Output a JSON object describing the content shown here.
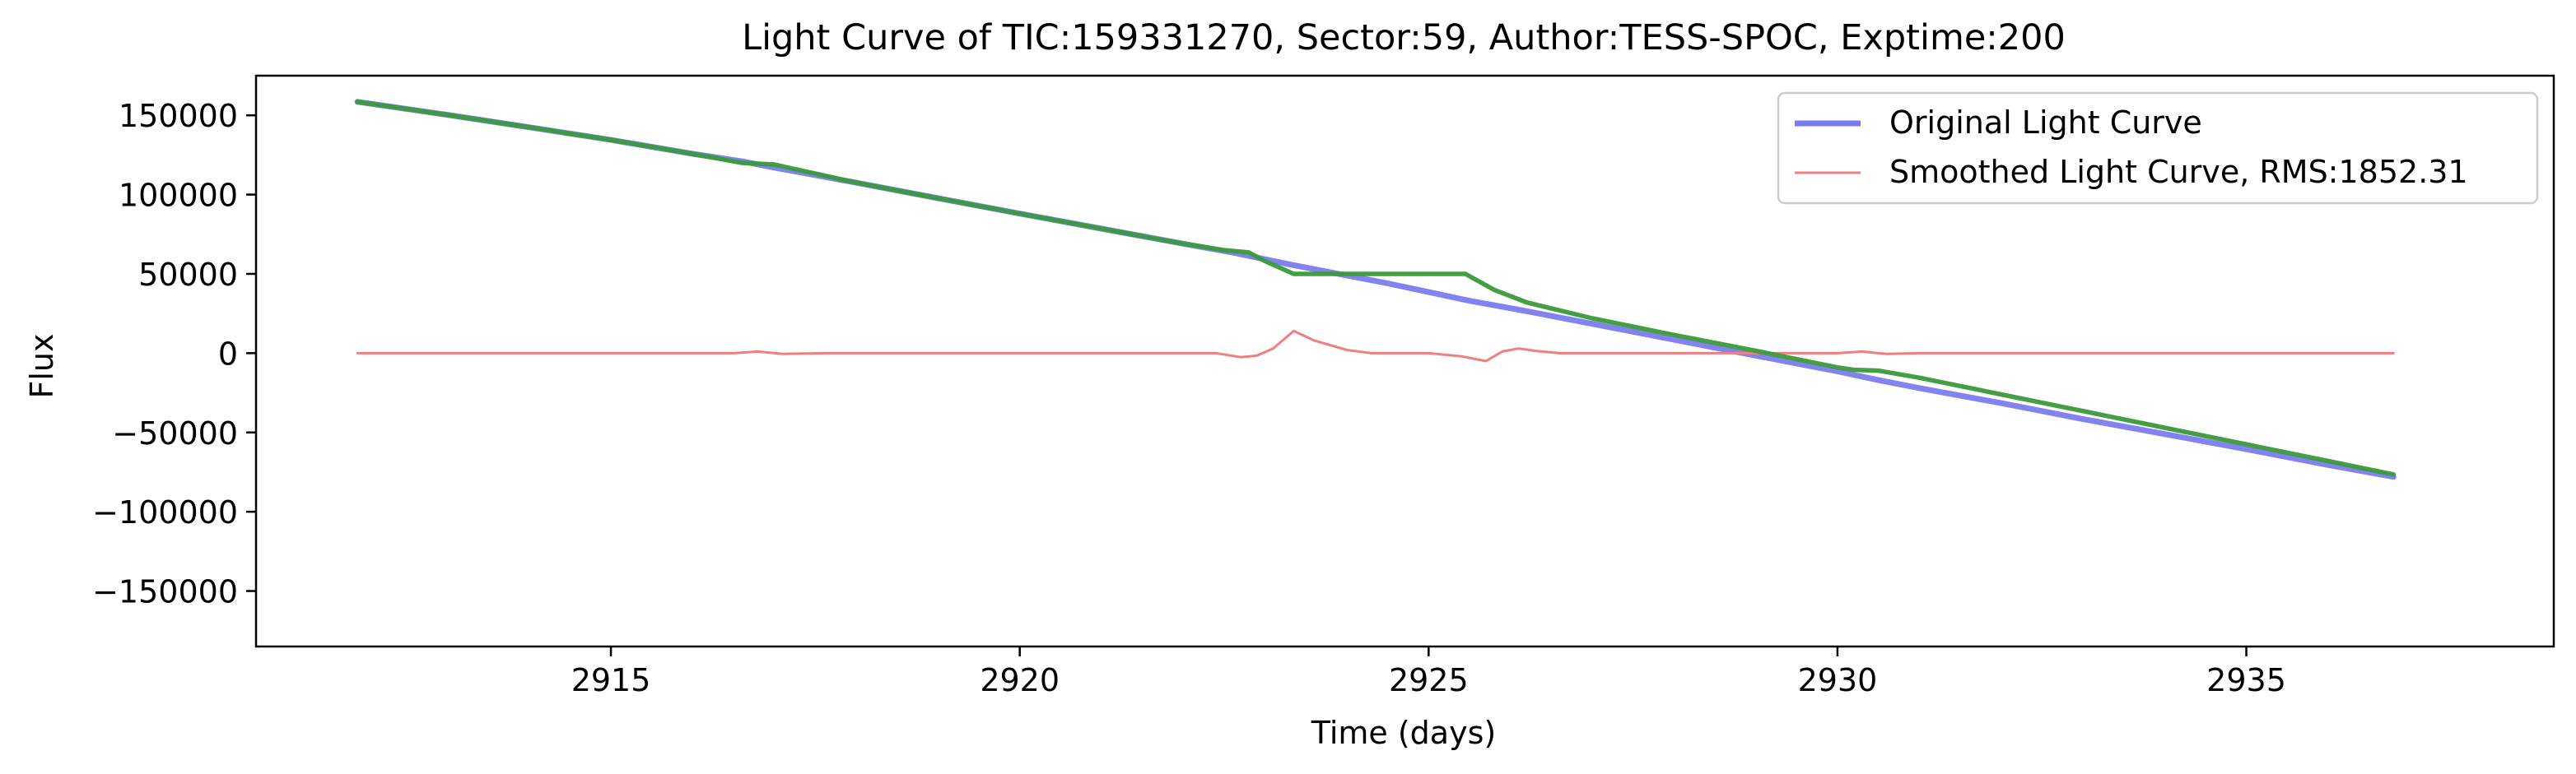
{
  "chart_data": {
    "type": "line",
    "title": "Light Curve of TIC:159331270, Sector:59, Author:TESS-SPOC, Exptime:200",
    "xlabel": "Time (days)",
    "ylabel": "Flux",
    "xlim": [
      2910.66,
      2938.76
    ],
    "ylim": [
      -185000,
      175000
    ],
    "xticks": [
      2915,
      2920,
      2925,
      2930,
      2935
    ],
    "xtick_labels": [
      "2915",
      "2920",
      "2925",
      "2930",
      "2935"
    ],
    "yticks": [
      150000,
      100000,
      50000,
      0,
      -50000,
      -100000,
      -150000
    ],
    "ytick_labels": [
      "150000",
      "100000",
      "50000",
      "0",
      "−50000",
      "−100000",
      "−150000"
    ],
    "grid": false,
    "legend_position": "upper right",
    "series": [
      {
        "name": "Original Light Curve",
        "color": "#7b7bf0",
        "points": [
          [
            2911.9,
            158500
          ],
          [
            2913.0,
            150300
          ],
          [
            2914.0,
            142500
          ],
          [
            2915.0,
            134500
          ],
          [
            2916.0,
            125700
          ],
          [
            2916.6,
            121000
          ],
          [
            2917.0,
            117000
          ],
          [
            2918.0,
            107500
          ],
          [
            2919.0,
            97700
          ],
          [
            2920.0,
            88000
          ],
          [
            2921.0,
            78500
          ],
          [
            2922.0,
            69000
          ],
          [
            2922.6,
            63500
          ],
          [
            2923.3,
            56000
          ],
          [
            2924.0,
            49000
          ],
          [
            2924.5,
            44000
          ],
          [
            2925.0,
            38500
          ],
          [
            2925.5,
            33000
          ],
          [
            2926.2,
            26500
          ],
          [
            2927.0,
            18500
          ],
          [
            2928.0,
            8500
          ],
          [
            2929.0,
            -1500
          ],
          [
            2930.0,
            -11500
          ],
          [
            2930.5,
            -17000
          ],
          [
            2931.0,
            -22000
          ],
          [
            2932.0,
            -31500
          ],
          [
            2933.0,
            -41500
          ],
          [
            2934.0,
            -51000
          ],
          [
            2935.0,
            -60500
          ],
          [
            2936.0,
            -70500
          ],
          [
            2936.8,
            -78000
          ]
        ]
      },
      {
        "name": "Smoothed Light Curve, RMS:1852.31",
        "color": "#f08080",
        "points": [
          [
            2911.9,
            0
          ],
          [
            2913.5,
            0
          ],
          [
            2915.5,
            0
          ],
          [
            2916.5,
            0
          ],
          [
            2916.8,
            1000
          ],
          [
            2917.1,
            -500
          ],
          [
            2917.6,
            0
          ],
          [
            2919.0,
            0
          ],
          [
            2921.0,
            0
          ],
          [
            2922.4,
            0
          ],
          [
            2922.7,
            -2500
          ],
          [
            2922.9,
            -1500
          ],
          [
            2923.1,
            3000
          ],
          [
            2923.35,
            14000
          ],
          [
            2923.6,
            8000
          ],
          [
            2924.0,
            2000
          ],
          [
            2924.3,
            0
          ],
          [
            2925.0,
            0
          ],
          [
            2925.4,
            -2000
          ],
          [
            2925.7,
            -5000
          ],
          [
            2925.9,
            1000
          ],
          [
            2926.1,
            3000
          ],
          [
            2926.3,
            1500
          ],
          [
            2926.6,
            0
          ],
          [
            2928.0,
            0
          ],
          [
            2930.0,
            0
          ],
          [
            2930.3,
            1000
          ],
          [
            2930.6,
            -500
          ],
          [
            2931.0,
            0
          ],
          [
            2933.0,
            0
          ],
          [
            2935.0,
            0
          ],
          [
            2936.8,
            0
          ]
        ]
      },
      {
        "name": "",
        "color": "#3a9a3a",
        "points": [
          [
            2911.9,
            158500
          ],
          [
            2913.0,
            150300
          ],
          [
            2914.0,
            142500
          ],
          [
            2915.0,
            134500
          ],
          [
            2916.0,
            125700
          ],
          [
            2916.6,
            120000
          ],
          [
            2917.0,
            119000
          ],
          [
            2918.0,
            107500
          ],
          [
            2919.0,
            97700
          ],
          [
            2920.0,
            88000
          ],
          [
            2921.0,
            78500
          ],
          [
            2922.0,
            69000
          ],
          [
            2922.5,
            65000
          ],
          [
            2922.8,
            63500
          ],
          [
            2923.0,
            58000
          ],
          [
            2923.35,
            50000
          ],
          [
            2924.0,
            50000
          ],
          [
            2925.0,
            50000
          ],
          [
            2925.45,
            50000
          ],
          [
            2925.8,
            40000
          ],
          [
            2926.2,
            32000
          ],
          [
            2927.0,
            22000
          ],
          [
            2928.0,
            11500
          ],
          [
            2929.0,
            1500
          ],
          [
            2930.0,
            -9000
          ],
          [
            2930.2,
            -10500
          ],
          [
            2930.5,
            -11000
          ],
          [
            2931.0,
            -15500
          ],
          [
            2932.0,
            -26000
          ],
          [
            2933.0,
            -36500
          ],
          [
            2934.0,
            -47000
          ],
          [
            2935.0,
            -57500
          ],
          [
            2936.0,
            -68000
          ],
          [
            2936.8,
            -76500
          ]
        ]
      }
    ]
  }
}
